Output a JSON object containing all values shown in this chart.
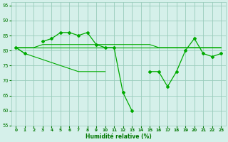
{
  "x": [
    0,
    1,
    2,
    3,
    4,
    5,
    6,
    7,
    8,
    9,
    10,
    11,
    12,
    13,
    14,
    15,
    16,
    17,
    18,
    19,
    20,
    21,
    22,
    23
  ],
  "series_main": [
    81,
    79,
    null,
    83,
    84,
    86,
    86,
    85,
    86,
    82,
    81,
    81,
    66,
    60,
    null,
    73,
    73,
    68,
    73,
    80,
    84,
    79,
    78,
    79
  ],
  "series_flat1": [
    81,
    81,
    81,
    82,
    82,
    82,
    82,
    82,
    82,
    82,
    82,
    82,
    82,
    82,
    82,
    82,
    81,
    81,
    81,
    81,
    81,
    81,
    81,
    81
  ],
  "series_flat2": [
    81,
    81,
    81,
    81,
    81,
    81,
    81,
    81,
    81,
    81,
    81,
    81,
    81,
    81,
    81,
    81,
    81,
    81,
    81,
    81,
    81,
    81,
    81,
    81
  ],
  "series_decline": [
    81,
    79,
    78,
    77,
    76,
    75,
    74,
    73,
    73,
    73,
    73,
    null,
    null,
    null,
    null,
    null,
    null,
    null,
    null,
    null,
    null,
    null,
    null,
    null
  ],
  "bg_color": "#d5f0ea",
  "grid_color": "#99ccbb",
  "line_color": "#00aa00",
  "xlabel": "Humidité relative (%)",
  "xlim": [
    -0.5,
    23.5
  ],
  "ylim": [
    55,
    96
  ],
  "yticks": [
    55,
    60,
    65,
    70,
    75,
    80,
    85,
    90,
    95
  ],
  "xticks": [
    0,
    1,
    2,
    3,
    4,
    5,
    6,
    7,
    8,
    9,
    10,
    11,
    12,
    13,
    14,
    15,
    16,
    17,
    18,
    19,
    20,
    21,
    22,
    23
  ]
}
